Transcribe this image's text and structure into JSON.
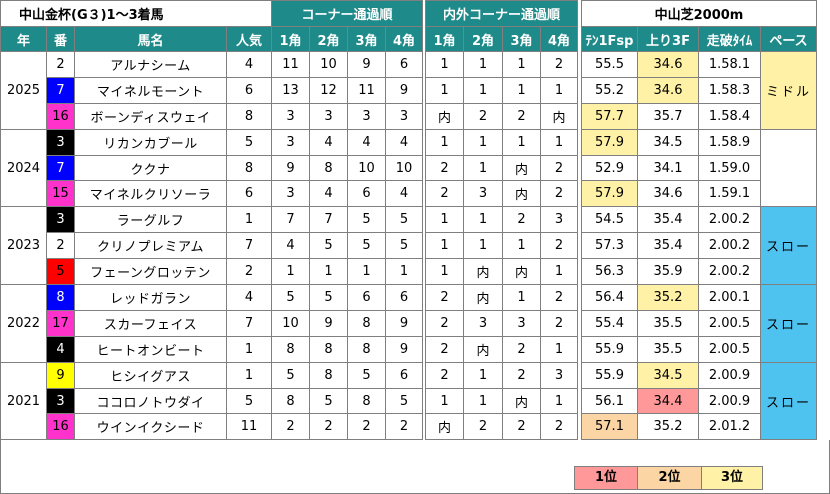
{
  "title": "中山金杯(G３)1～3着馬",
  "groups": {
    "corner": "コーナー通過順",
    "inout": "内外コーナー通過順",
    "course": "中山芝2000m"
  },
  "headers": [
    "年",
    "番",
    "馬名",
    "人気",
    "1角",
    "2角",
    "3角",
    "4角",
    "1角",
    "2角",
    "3角",
    "4角",
    "ﾃﾝ1Fsp",
    "上り3F",
    "走破ﾀｲﾑ",
    "ペース"
  ],
  "colors": {
    "header_teal": "#1f8a8a",
    "rank1": "#ff9999",
    "rank2": "#fcd5a5",
    "rank3": "#fff2a6",
    "pace_mid": "#fff2a6",
    "pace_slow": "#4fc3f0",
    "frame1": "#ffffff",
    "frame2": "#000000",
    "frame3": "#ff0000",
    "frame4": "#0000ff",
    "frame5": "#ffff00",
    "frame6": "#00b050",
    "frame7": "#ff8c00",
    "frame8": "#ff33cc"
  },
  "legend": [
    {
      "label": "1位",
      "color": "#ff9999"
    },
    {
      "label": "2位",
      "color": "#fcd5a5"
    },
    {
      "label": "3位",
      "color": "#fff2a6"
    }
  ],
  "years": [
    {
      "year": "2025",
      "pace": "ミドル",
      "pace_color": "#fff2a6",
      "rows": [
        {
          "num": "2",
          "numbg": "#ffffff",
          "numfg": "#000000",
          "name": "アルナシーム",
          "pop": "4",
          "c": [
            "11",
            "10",
            "9",
            "6"
          ],
          "io": [
            "1",
            "1",
            "1",
            "2"
          ],
          "ten": "55.5",
          "ten_bg": "",
          "agari": "34.6",
          "agari_bg": "#fff2a6",
          "time": "1.58.1"
        },
        {
          "num": "7",
          "numbg": "#0000ff",
          "numfg": "#ffffff",
          "name": "マイネルモーント",
          "pop": "6",
          "c": [
            "13",
            "12",
            "11",
            "9"
          ],
          "io": [
            "1",
            "1",
            "1",
            "1"
          ],
          "ten": "55.2",
          "ten_bg": "",
          "agari": "34.6",
          "agari_bg": "#fff2a6",
          "time": "1.58.3"
        },
        {
          "num": "16",
          "numbg": "#ff33cc",
          "numfg": "#000000",
          "name": "ボーンディスウェイ",
          "pop": "8",
          "c": [
            "3",
            "3",
            "3",
            "3"
          ],
          "io": [
            "内",
            "2",
            "2",
            "内"
          ],
          "ten": "57.7",
          "ten_bg": "#fff2a6",
          "agari": "35.7",
          "agari_bg": "",
          "time": "1.58.4"
        }
      ]
    },
    {
      "year": "2024",
      "pace": "",
      "pace_color": "#ffffff",
      "rows": [
        {
          "num": "3",
          "numbg": "#000000",
          "numfg": "#ffffff",
          "name": "リカンカブール",
          "pop": "5",
          "c": [
            "3",
            "4",
            "4",
            "4"
          ],
          "io": [
            "1",
            "1",
            "1",
            "1"
          ],
          "ten": "57.9",
          "ten_bg": "#fff2a6",
          "agari": "34.5",
          "agari_bg": "",
          "time": "1.58.9"
        },
        {
          "num": "7",
          "numbg": "#0000ff",
          "numfg": "#ffffff",
          "name": "ククナ",
          "pop": "8",
          "c": [
            "9",
            "8",
            "10",
            "10"
          ],
          "io": [
            "2",
            "1",
            "内",
            "2"
          ],
          "ten": "52.9",
          "ten_bg": "",
          "agari": "34.1",
          "agari_bg": "",
          "time": "1.59.0"
        },
        {
          "num": "15",
          "numbg": "#ff33cc",
          "numfg": "#000000",
          "name": "マイネルクリソーラ",
          "pop": "6",
          "c": [
            "3",
            "4",
            "6",
            "4"
          ],
          "io": [
            "2",
            "3",
            "内",
            "2"
          ],
          "ten": "57.9",
          "ten_bg": "#fff2a6",
          "agari": "34.6",
          "agari_bg": "",
          "time": "1.59.1"
        }
      ]
    },
    {
      "year": "2023",
      "pace": "スロー",
      "pace_color": "#4fc3f0",
      "rows": [
        {
          "num": "3",
          "numbg": "#000000",
          "numfg": "#ffffff",
          "name": "ラーグルフ",
          "pop": "1",
          "c": [
            "7",
            "7",
            "5",
            "5"
          ],
          "io": [
            "1",
            "1",
            "2",
            "3"
          ],
          "ten": "54.5",
          "ten_bg": "",
          "agari": "35.4",
          "agari_bg": "",
          "time": "2.00.2"
        },
        {
          "num": "2",
          "numbg": "#ffffff",
          "numfg": "#000000",
          "name": "クリノプレミアム",
          "pop": "7",
          "c": [
            "4",
            "5",
            "5",
            "5"
          ],
          "io": [
            "1",
            "1",
            "1",
            "2"
          ],
          "ten": "57.3",
          "ten_bg": "",
          "agari": "35.4",
          "agari_bg": "",
          "time": "2.00.2"
        },
        {
          "num": "5",
          "numbg": "#ff0000",
          "numfg": "#000000",
          "name": "フェーングロッテン",
          "pop": "2",
          "c": [
            "1",
            "1",
            "1",
            "1"
          ],
          "io": [
            "1",
            "内",
            "内",
            "1"
          ],
          "ten": "56.3",
          "ten_bg": "",
          "agari": "35.9",
          "agari_bg": "",
          "time": "2.00.2"
        }
      ]
    },
    {
      "year": "2022",
      "pace": "スロー",
      "pace_color": "#4fc3f0",
      "rows": [
        {
          "num": "8",
          "numbg": "#0000ff",
          "numfg": "#ffffff",
          "name": "レッドガラン",
          "pop": "4",
          "c": [
            "5",
            "5",
            "6",
            "6"
          ],
          "io": [
            "2",
            "内",
            "1",
            "2"
          ],
          "ten": "56.4",
          "ten_bg": "",
          "agari": "35.2",
          "agari_bg": "#fff2a6",
          "time": "2.00.1"
        },
        {
          "num": "17",
          "numbg": "#ff33cc",
          "numfg": "#000000",
          "name": "スカーフェイス",
          "pop": "7",
          "c": [
            "10",
            "9",
            "8",
            "9"
          ],
          "io": [
            "2",
            "3",
            "3",
            "2"
          ],
          "ten": "55.4",
          "ten_bg": "",
          "agari": "35.5",
          "agari_bg": "",
          "time": "2.00.5"
        },
        {
          "num": "4",
          "numbg": "#000000",
          "numfg": "#ffffff",
          "name": "ヒートオンビート",
          "pop": "1",
          "c": [
            "8",
            "8",
            "8",
            "9"
          ],
          "io": [
            "2",
            "内",
            "2",
            "1"
          ],
          "ten": "55.9",
          "ten_bg": "",
          "agari": "35.5",
          "agari_bg": "",
          "time": "2.00.5"
        }
      ]
    },
    {
      "year": "2021",
      "pace": "スロー",
      "pace_color": "#4fc3f0",
      "rows": [
        {
          "num": "9",
          "numbg": "#ffff00",
          "numfg": "#000000",
          "name": "ヒシイグアス",
          "pop": "1",
          "c": [
            "5",
            "8",
            "5",
            "6"
          ],
          "io": [
            "2",
            "1",
            "2",
            "3"
          ],
          "ten": "55.9",
          "ten_bg": "",
          "agari": "34.5",
          "agari_bg": "#fff2a6",
          "time": "2.00.9"
        },
        {
          "num": "3",
          "numbg": "#000000",
          "numfg": "#ffffff",
          "name": "ココロノトウダイ",
          "pop": "5",
          "c": [
            "8",
            "5",
            "8",
            "5"
          ],
          "io": [
            "1",
            "1",
            "内",
            "1"
          ],
          "ten": "56.1",
          "ten_bg": "",
          "agari": "34.4",
          "agari_bg": "#ff9999",
          "time": "2.00.9"
        },
        {
          "num": "16",
          "numbg": "#ff33cc",
          "numfg": "#000000",
          "name": "ウインイクシード",
          "pop": "11",
          "c": [
            "2",
            "2",
            "2",
            "2"
          ],
          "io": [
            "内",
            "2",
            "2",
            "2"
          ],
          "ten": "57.1",
          "ten_bg": "#fcd5a5",
          "agari": "35.2",
          "agari_bg": "",
          "time": "2.01.2"
        }
      ]
    }
  ]
}
